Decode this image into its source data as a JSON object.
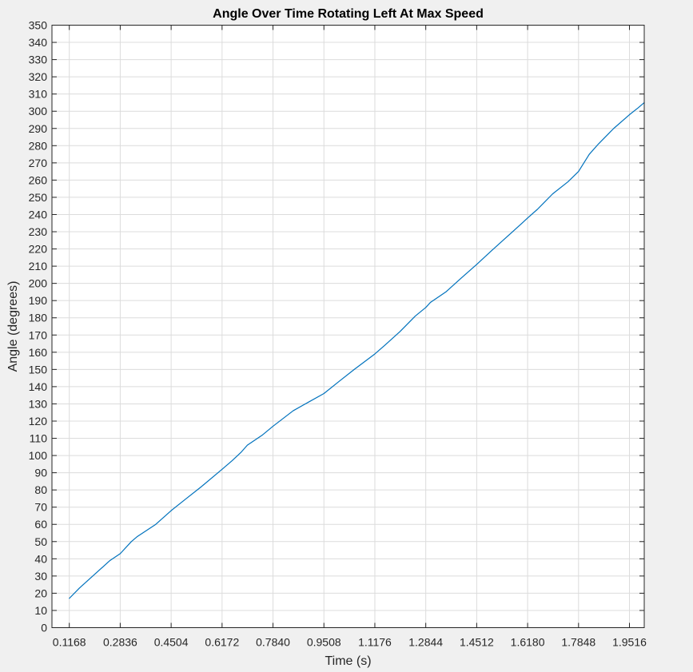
{
  "colors": {
    "figure_background": "#f0f0f0",
    "axes_background": "#ffffff",
    "grid": "#dcdcdc",
    "axis": "#262626",
    "series": "#0072bd"
  },
  "chart_data": {
    "type": "line",
    "title": "Angle Over Time Rotating Left At Max Speed",
    "xlabel": "Time (s)",
    "ylabel": "Angle (degrees)",
    "xlim": [
      0.06,
      2.0
    ],
    "ylim": [
      0,
      350
    ],
    "grid": true,
    "legend": "none",
    "x_ticks": [
      "0.1168",
      "0.2836",
      "0.4504",
      "0.6172",
      "0.7840",
      "0.9508",
      "1.1176",
      "1.2844",
      "1.4512",
      "1.6180",
      "1.7848",
      "1.9516"
    ],
    "y_ticks": [
      0,
      10,
      20,
      30,
      40,
      50,
      60,
      70,
      80,
      90,
      100,
      110,
      120,
      130,
      140,
      150,
      160,
      170,
      180,
      190,
      200,
      210,
      220,
      230,
      240,
      250,
      260,
      270,
      280,
      290,
      300,
      310,
      320,
      330,
      340,
      350
    ],
    "series": [
      {
        "x": [
          0.1168,
          0.15,
          0.2,
          0.25,
          0.2836,
          0.32,
          0.34,
          0.4,
          0.4504,
          0.5,
          0.55,
          0.6172,
          0.65,
          0.68,
          0.7,
          0.75,
          0.784,
          0.85,
          0.9,
          0.9508,
          1.0,
          1.05,
          1.1176,
          1.15,
          1.2,
          1.25,
          1.2844,
          1.3,
          1.35,
          1.4,
          1.4512,
          1.5,
          1.55,
          1.6,
          1.618,
          1.65,
          1.7,
          1.75,
          1.7848,
          1.82,
          1.85,
          1.9,
          1.9516,
          1.98,
          2.0
        ],
        "y": [
          17,
          23,
          31,
          39,
          43,
          50,
          53,
          60,
          68,
          75,
          82,
          92,
          97,
          102,
          106,
          112,
          117,
          126,
          131,
          136,
          143,
          150,
          159,
          164,
          172,
          181,
          186,
          189,
          195,
          203,
          211,
          219,
          227,
          235,
          238,
          243,
          252,
          259,
          265,
          275,
          281,
          290,
          298,
          302,
          305
        ]
      }
    ]
  }
}
